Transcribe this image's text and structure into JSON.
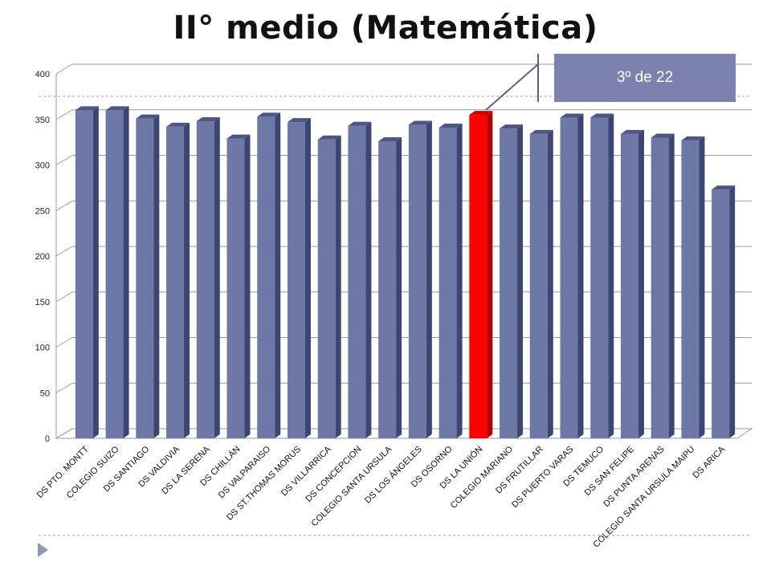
{
  "slide": {
    "title": "II° medio (Matemática)"
  },
  "callout": {
    "text": "3º de 22"
  },
  "colors": {
    "bar": "#6e78a6",
    "bar_side": "#3d4672",
    "bar_top": "#4d5784",
    "highlight": "#ff0000",
    "highlight_side": "#b30000",
    "highlight_top": "#cc0000",
    "grid": "#9a9a9a",
    "callout_bg": "#7a82ad",
    "nav_icon": "#8a9bb8"
  },
  "nav": {
    "icon": "right-triangle-icon"
  },
  "chart_data": {
    "type": "bar",
    "style": "3d-columns",
    "title": "",
    "xlabel": "",
    "ylabel": "",
    "ylim": [
      0,
      400
    ],
    "yticks": [
      0,
      50,
      100,
      150,
      200,
      250,
      300,
      350,
      400
    ],
    "ytick_labels": [
      "0",
      "50",
      "100",
      "150",
      "200",
      "250",
      "300",
      "350",
      "400"
    ],
    "grid": true,
    "legend": "none",
    "highlight_index": 13,
    "categories": [
      "DS PTO. MONTT",
      "COLEGIO SUIZO",
      "DS SANTIAGO",
      "DS VALDIVIA",
      "DS LA SERENA",
      "DS CHILLÁN",
      "DS VALPARAISO",
      "DS ST.THOMAS MORUS",
      "DS VILLARRICA",
      "DS CONCEPCION",
      "COLEGIO SANTA URSULA",
      "DS LOS ÁNGELES",
      "DS OSORNO",
      "DS LA UNIÓN",
      "COLEGIO MARIANO",
      "DS FRUTILLAR",
      "DS PUERTO VARAS",
      "DS TEMUCO",
      "DS SAN FELIPE",
      "DS PUNTA ARENAS",
      "COLEGIO SANTA URSULA MAIPU",
      "DS ARICA"
    ],
    "values": [
      360,
      360,
      351,
      342,
      348,
      329,
      353,
      347,
      328,
      343,
      326,
      344,
      341,
      355,
      340,
      334,
      352,
      352,
      334,
      330,
      327,
      273
    ]
  }
}
